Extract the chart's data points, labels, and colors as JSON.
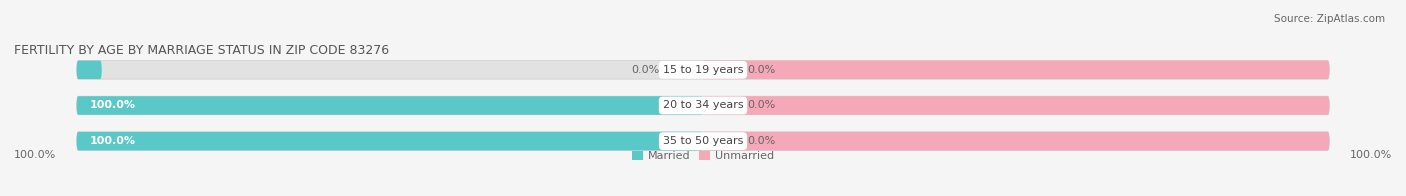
{
  "title": "FERTILITY BY AGE BY MARRIAGE STATUS IN ZIP CODE 83276",
  "source": "Source: ZipAtlas.com",
  "categories": [
    "15 to 19 years",
    "20 to 34 years",
    "35 to 50 years"
  ],
  "married_values": [
    0.0,
    100.0,
    100.0
  ],
  "unmarried_values": [
    0.0,
    0.0,
    0.0
  ],
  "married_color": "#5bc8c8",
  "unmarried_color": "#f5a8b8",
  "bar_bg_color": "#e2e2e2",
  "bar_border_color": "#cccccc",
  "title_color": "#555555",
  "text_color": "#555555",
  "label_color": "#666666",
  "cat_label_color": "#444444",
  "background_color": "#f5f5f5",
  "title_fontsize": 9,
  "source_fontsize": 7.5,
  "bar_label_fontsize": 8,
  "cat_label_fontsize": 8,
  "legend_fontsize": 8,
  "axis_label_left": "100.0%",
  "axis_label_right": "100.0%"
}
